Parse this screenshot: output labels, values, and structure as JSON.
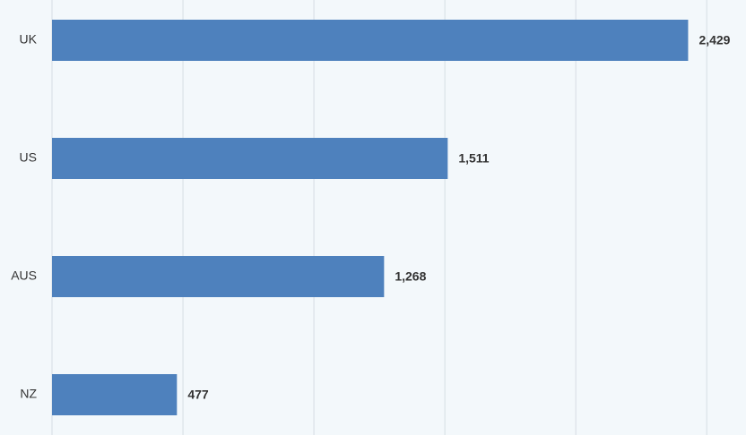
{
  "chart_data": {
    "type": "bar",
    "orientation": "horizontal",
    "categories": [
      "UK",
      "US",
      "AUS",
      "NZ"
    ],
    "values": [
      2429,
      1511,
      1268,
      477
    ],
    "value_labels": [
      "2,429",
      "1,511",
      "1,268",
      "477"
    ],
    "color": "#4e81bd",
    "xlim": [
      0,
      2650
    ],
    "xticks": [
      0,
      500,
      1000,
      1500,
      2000,
      2500
    ],
    "grid": true
  }
}
